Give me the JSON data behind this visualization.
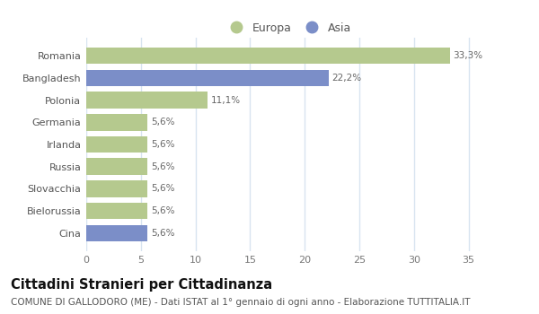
{
  "categories": [
    "Romania",
    "Bangladesh",
    "Polonia",
    "Germania",
    "Irlanda",
    "Russia",
    "Slovacchia",
    "Bielorussia",
    "Cina"
  ],
  "values": [
    33.3,
    22.2,
    11.1,
    5.6,
    5.6,
    5.6,
    5.6,
    5.6,
    5.6
  ],
  "labels": [
    "33,3%",
    "22,2%",
    "11,1%",
    "5,6%",
    "5,6%",
    "5,6%",
    "5,6%",
    "5,6%",
    "5,6%"
  ],
  "colors": [
    "#b5c98e",
    "#7b8ec8",
    "#b5c98e",
    "#b5c98e",
    "#b5c98e",
    "#b5c98e",
    "#b5c98e",
    "#b5c98e",
    "#7b8ec8"
  ],
  "europa_color": "#b5c98e",
  "asia_color": "#7b8ec8",
  "xlim": [
    0,
    37
  ],
  "xticks": [
    0,
    5,
    10,
    15,
    20,
    25,
    30,
    35
  ],
  "title": "Cittadini Stranieri per Cittadinanza",
  "subtitle": "COMUNE DI GALLODORO (ME) - Dati ISTAT al 1° gennaio di ogni anno - Elaborazione TUTTITALIA.IT",
  "title_fontsize": 10.5,
  "subtitle_fontsize": 7.5,
  "label_fontsize": 7.5,
  "tick_fontsize": 8,
  "legend_fontsize": 9,
  "bar_height": 0.75,
  "bg_color": "#ffffff",
  "plot_bg_color": "#ffffff",
  "grid_color": "#d8e4f0"
}
